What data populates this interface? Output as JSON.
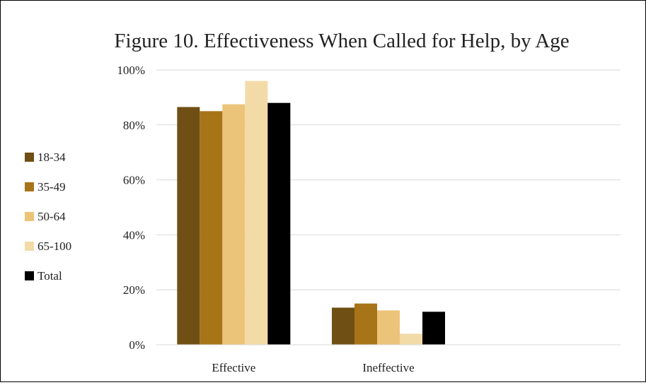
{
  "chart_data": {
    "type": "bar",
    "title": "Figure 10. Effectiveness When Called for Help, by Age",
    "xlabel": "",
    "ylabel": "",
    "categories": [
      "Effective",
      "Ineffective"
    ],
    "ylim": [
      0,
      100
    ],
    "yticks": [
      0,
      20,
      40,
      60,
      80,
      100
    ],
    "ytick_labels": [
      "0%",
      "20%",
      "40%",
      "60%",
      "80%",
      "100%"
    ],
    "grid": true,
    "legend_position": "left",
    "series": [
      {
        "name": "18-34",
        "color": "#6f4f13",
        "values": [
          86.5,
          13.5
        ]
      },
      {
        "name": "35-49",
        "color": "#a87418",
        "values": [
          85,
          15
        ]
      },
      {
        "name": "50-64",
        "color": "#ecc479",
        "values": [
          87.5,
          12.5
        ]
      },
      {
        "name": "65-100",
        "color": "#f3dba8",
        "values": [
          96,
          4
        ]
      },
      {
        "name": "Total",
        "color": "#000000",
        "values": [
          88,
          12
        ]
      }
    ]
  }
}
